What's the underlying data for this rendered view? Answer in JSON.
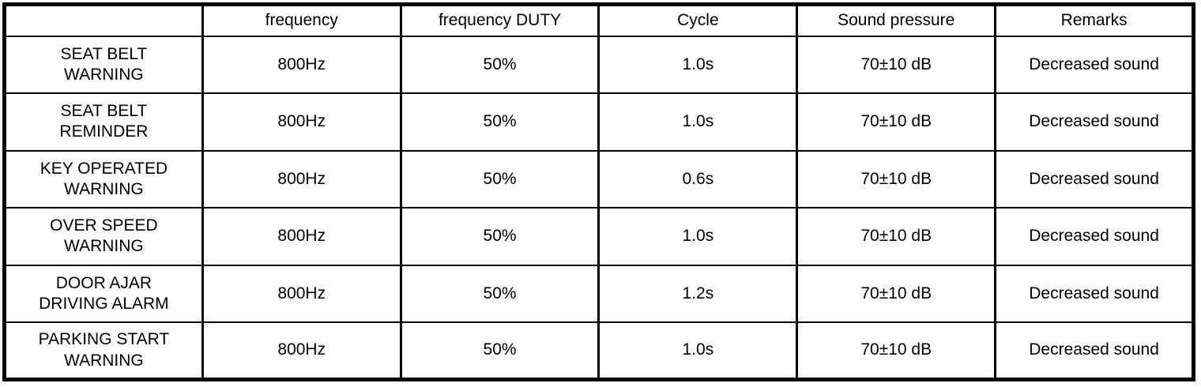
{
  "colors": {
    "background": "#ffffff",
    "border": "#000000",
    "text": "#000000"
  },
  "table": {
    "columns": {
      "c0": "",
      "c1": "frequency",
      "c2": "frequency DUTY",
      "c3": "Cycle",
      "c4": "Sound pressure",
      "c5": "Remarks"
    },
    "rows": {
      "0": {
        "label": "SEAT BELT\nWARNING",
        "frequency": "800Hz",
        "duty": "50%",
        "cycle": "1.0s",
        "sound_pressure": "70±10 dB",
        "remarks": "Decreased sound"
      },
      "1": {
        "label": "SEAT BELT\nREMINDER",
        "frequency": "800Hz",
        "duty": "50%",
        "cycle": "1.0s",
        "sound_pressure": "70±10 dB",
        "remarks": "Decreased sound"
      },
      "2": {
        "label": "KEY OPERATED\nWARNING",
        "frequency": "800Hz",
        "duty": "50%",
        "cycle": "0.6s",
        "sound_pressure": "70±10 dB",
        "remarks": "Decreased sound"
      },
      "3": {
        "label": "OVER SPEED\nWARNING",
        "frequency": "800Hz",
        "duty": "50%",
        "cycle": "1.0s",
        "sound_pressure": "70±10 dB",
        "remarks": "Decreased sound"
      },
      "4": {
        "label": "DOOR AJAR\nDRIVING ALARM",
        "frequency": "800Hz",
        "duty": "50%",
        "cycle": "1.2s",
        "sound_pressure": "70±10 dB",
        "remarks": "Decreased sound"
      },
      "5": {
        "label": "PARKING START\nWARNING",
        "frequency": "800Hz",
        "duty": "50%",
        "cycle": "1.0s",
        "sound_pressure": "70±10 dB",
        "remarks": "Decreased sound"
      }
    }
  }
}
